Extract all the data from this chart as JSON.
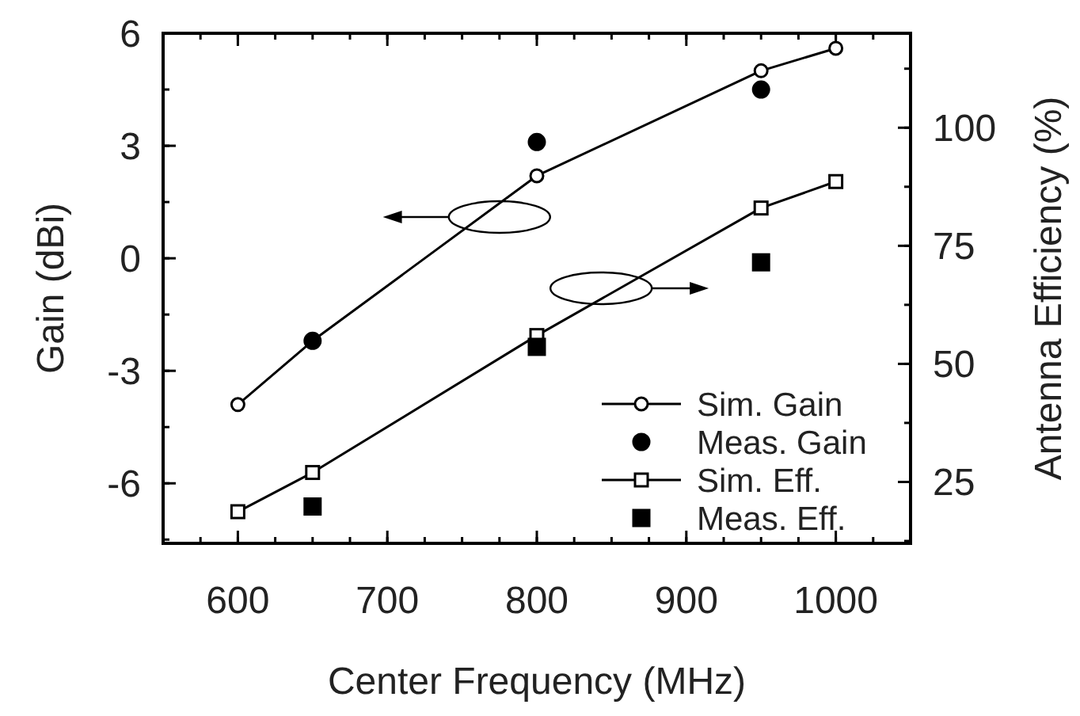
{
  "chart_data": {
    "type": "line",
    "xlabel": "Center Frequency (MHz)",
    "ylabel": "Gain (dBi)",
    "y2label": "Antenna Efficiency (%)",
    "xlim": [
      550,
      1050
    ],
    "xticks": [
      600,
      700,
      800,
      900,
      1000
    ],
    "ylim": [
      -7.6,
      6
    ],
    "yticks": [
      -6,
      -3,
      0,
      3,
      6
    ],
    "y2lim": [
      12,
      120
    ],
    "y2ticks": [
      25,
      50,
      75,
      100
    ],
    "grid": false,
    "legend": "bottom right",
    "series": [
      {
        "name": "Sim. Gain",
        "marker": "circle",
        "color": "#000000",
        "x": [
          600,
          650,
          800,
          950,
          1000
        ],
        "values": [
          -3.9,
          -2.2,
          2.2,
          5.0,
          5.6
        ]
      },
      {
        "name": "Meas. Gain",
        "type": "scatter",
        "marker": "circle",
        "color": "#000000",
        "x": [
          650,
          800,
          950
        ],
        "values": [
          -2.2,
          3.1,
          4.5
        ]
      },
      {
        "name": "Sim. Eff.",
        "marker": "square",
        "axis": "y2",
        "color": "#000000",
        "x": [
          600,
          650,
          800,
          950,
          1000
        ],
        "values": [
          18.7,
          27,
          56,
          83,
          88.6
        ]
      },
      {
        "name": "Meas. Eff.",
        "type": "scatter",
        "marker": "square",
        "axis": "y2",
        "color": "#000000",
        "x": [
          650,
          800,
          950
        ],
        "values": [
          19.8,
          53.6,
          71.5
        ]
      }
    ]
  }
}
